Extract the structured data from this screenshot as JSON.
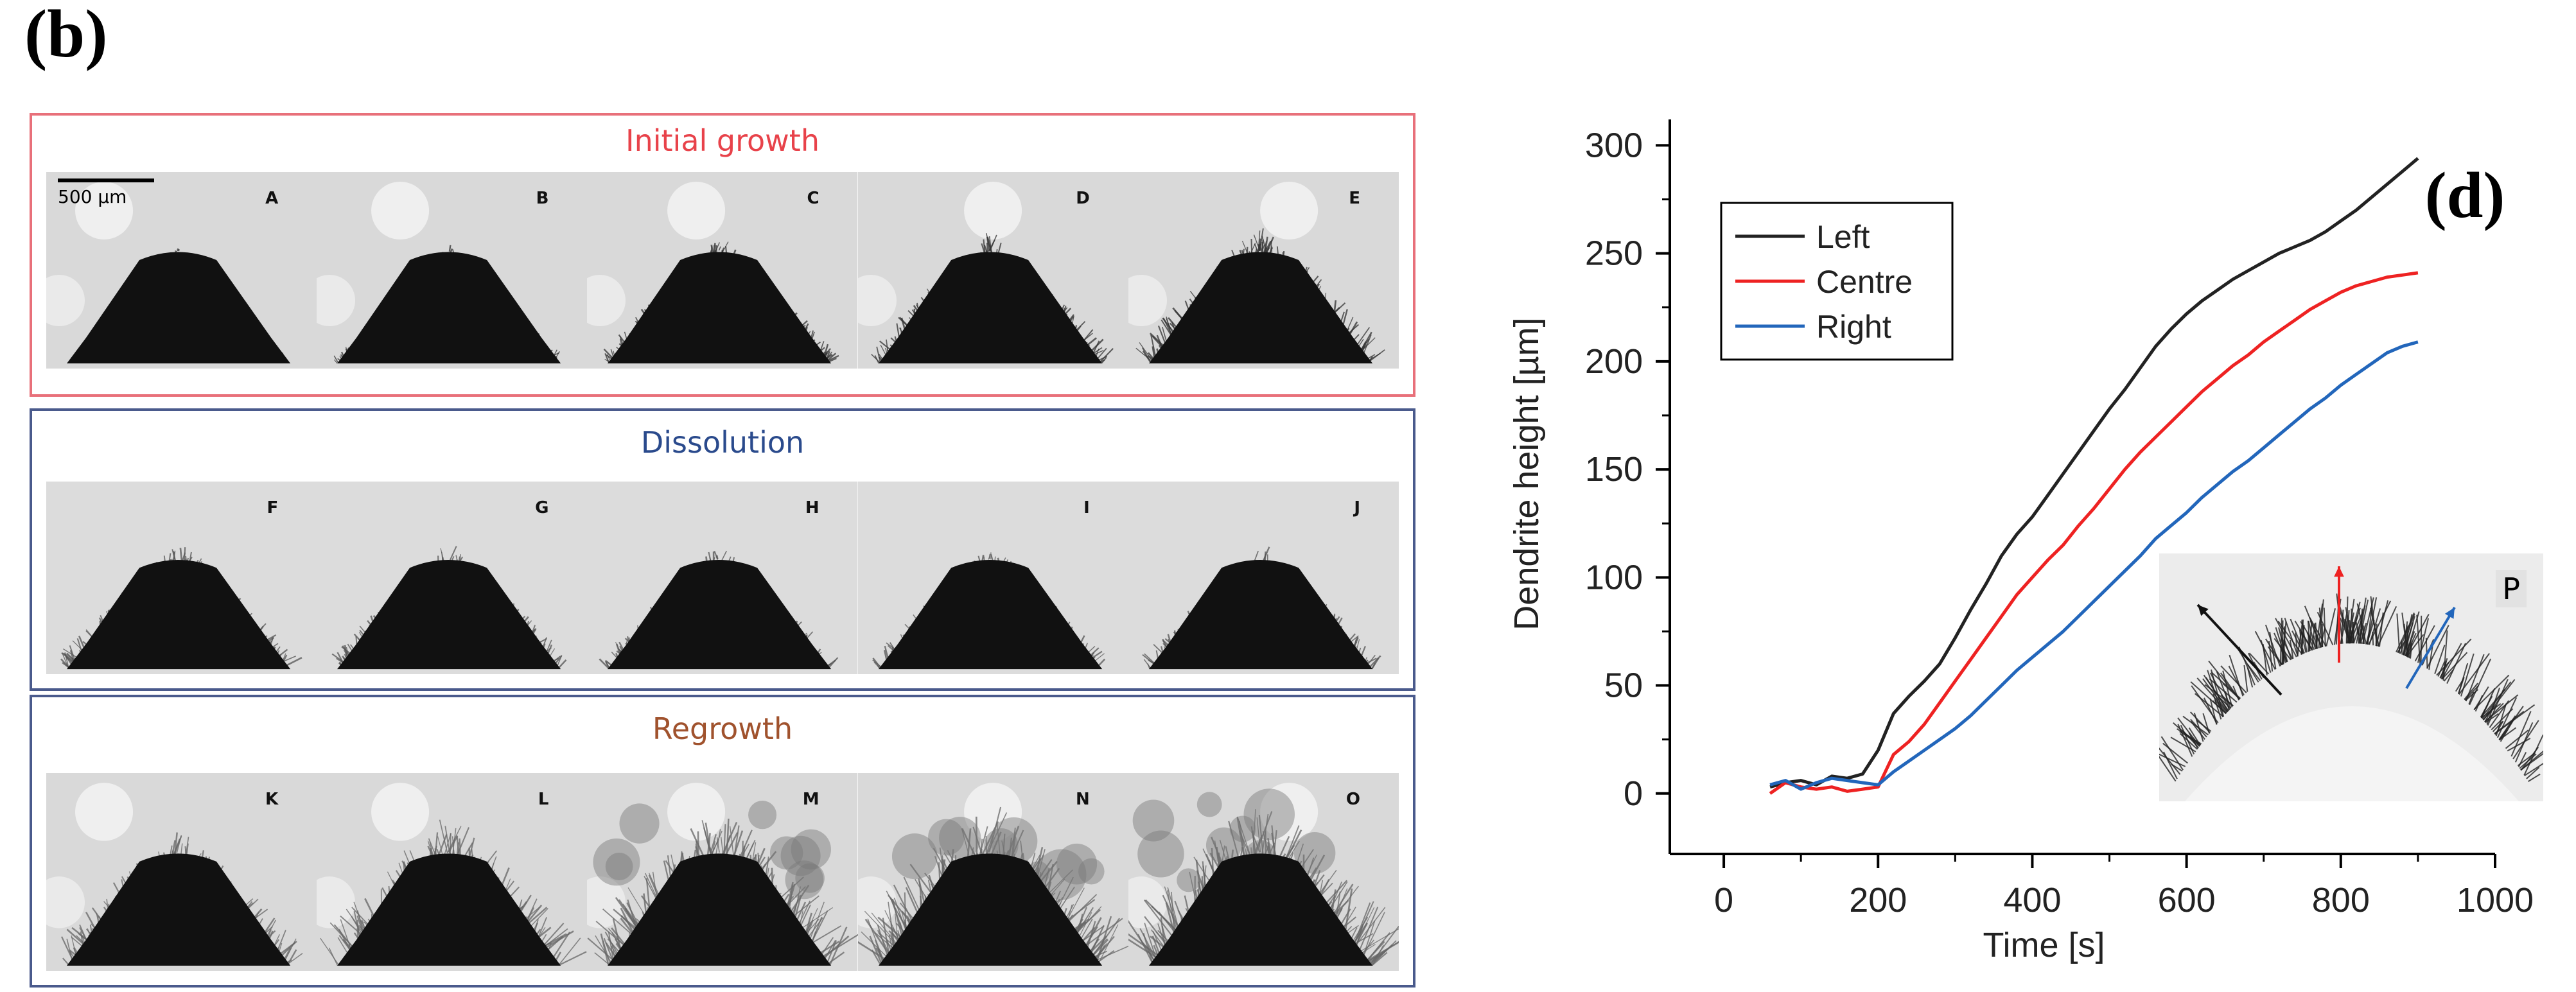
{
  "panel_b": {
    "letter": "(b)",
    "scale_bar": "500 μm",
    "rows": [
      {
        "title": "Initial growth",
        "title_color": "#e8424a",
        "border_color": "#e8707a",
        "frames": [
          "A",
          "B",
          "C",
          "D",
          "E"
        ],
        "background": "light",
        "growth": [
          0.1,
          0.25,
          0.45,
          0.6,
          0.75
        ]
      },
      {
        "title": "Dissolution",
        "title_color": "#2a4a8c",
        "border_color": "#4a5a8c",
        "frames": [
          "F",
          "G",
          "H",
          "I",
          "J"
        ],
        "background": "grey",
        "growth": [
          0.55,
          0.5,
          0.45,
          0.45,
          0.5
        ]
      },
      {
        "title": "Regrowth",
        "title_color": "#a0522d",
        "border_color": "#4a5a8c",
        "frames": [
          "K",
          "L",
          "M",
          "N",
          "O"
        ],
        "background": "light",
        "growth": [
          0.5,
          0.7,
          0.85,
          0.95,
          1.0
        ]
      }
    ]
  },
  "panel_d": {
    "letter": "(d)",
    "inset_label": "P",
    "chart_data": {
      "type": "line",
      "title": "",
      "xlabel": "Time [s]",
      "ylabel": "Dendrite height [µm]",
      "xlim": [
        -70,
        1000
      ],
      "ylim": [
        -28,
        312
      ],
      "xticks": [
        0,
        200,
        400,
        600,
        800,
        1000
      ],
      "yticks": [
        0,
        50,
        100,
        150,
        200,
        250,
        300
      ],
      "grid": false,
      "legend_position": "top-left",
      "series": [
        {
          "name": "Left",
          "color": "#222222",
          "x": [
            60,
            80,
            100,
            120,
            140,
            160,
            180,
            200,
            220,
            240,
            260,
            280,
            300,
            320,
            340,
            360,
            380,
            400,
            420,
            440,
            460,
            480,
            500,
            520,
            540,
            560,
            580,
            600,
            620,
            640,
            660,
            680,
            700,
            720,
            740,
            760,
            780,
            800,
            820,
            840,
            860,
            880,
            900
          ],
          "y": [
            3,
            5,
            6,
            4,
            8,
            7,
            9,
            20,
            37,
            45,
            52,
            60,
            72,
            85,
            97,
            110,
            120,
            128,
            138,
            148,
            158,
            168,
            178,
            187,
            197,
            207,
            215,
            222,
            228,
            233,
            238,
            242,
            246,
            250,
            253,
            256,
            260,
            265,
            270,
            276,
            282,
            288,
            294
          ]
        },
        {
          "name": "Centre",
          "color": "#ee2222",
          "x": [
            60,
            80,
            100,
            120,
            140,
            160,
            180,
            200,
            220,
            240,
            260,
            280,
            300,
            320,
            340,
            360,
            380,
            400,
            420,
            440,
            460,
            480,
            500,
            520,
            540,
            560,
            580,
            600,
            620,
            640,
            660,
            680,
            700,
            720,
            740,
            760,
            780,
            800,
            820,
            840,
            860,
            880,
            900
          ],
          "y": [
            0,
            5,
            3,
            2,
            3,
            1,
            2,
            3,
            18,
            24,
            32,
            42,
            52,
            62,
            72,
            82,
            92,
            100,
            108,
            115,
            124,
            132,
            141,
            150,
            158,
            165,
            172,
            179,
            186,
            192,
            198,
            203,
            209,
            214,
            219,
            224,
            228,
            232,
            235,
            237,
            239,
            240,
            241
          ]
        },
        {
          "name": "Right",
          "color": "#2266bb",
          "x": [
            60,
            80,
            100,
            120,
            140,
            160,
            180,
            200,
            220,
            240,
            260,
            280,
            300,
            320,
            340,
            360,
            380,
            400,
            420,
            440,
            460,
            480,
            500,
            520,
            540,
            560,
            580,
            600,
            620,
            640,
            660,
            680,
            700,
            720,
            740,
            760,
            780,
            800,
            820,
            840,
            860,
            880,
            900
          ],
          "y": [
            4,
            6,
            2,
            5,
            7,
            6,
            5,
            4,
            10,
            15,
            20,
            25,
            30,
            36,
            43,
            50,
            57,
            63,
            69,
            75,
            82,
            89,
            96,
            103,
            110,
            118,
            124,
            130,
            137,
            143,
            149,
            154,
            160,
            166,
            172,
            178,
            183,
            189,
            194,
            199,
            204,
            207,
            209
          ]
        }
      ]
    }
  }
}
